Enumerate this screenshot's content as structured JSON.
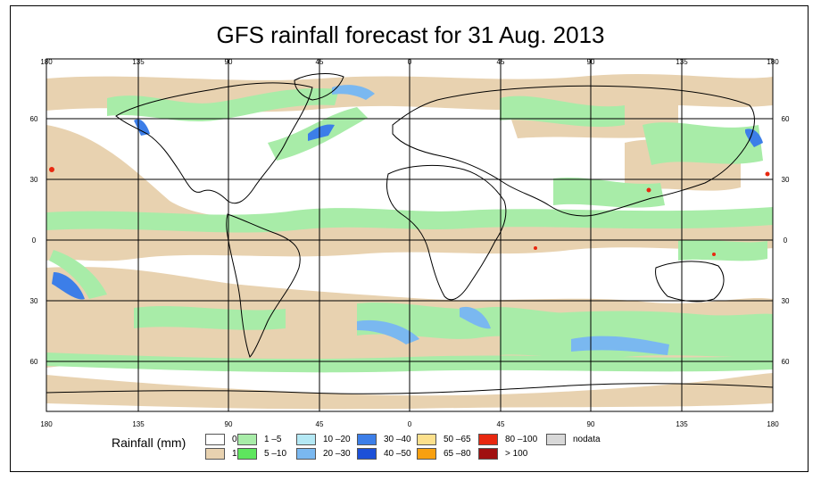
{
  "title": "GFS rainfall forecast for 31 Aug. 2013",
  "axes": {
    "lon_ticks": [
      "180",
      "135",
      "90",
      "45",
      "0",
      "45",
      "90",
      "135",
      "180"
    ],
    "lat_ticks": [
      "60",
      "30",
      "0",
      "30",
      "60"
    ]
  },
  "legend": {
    "label": "Rainfall (mm)",
    "items": [
      {
        "text": "0",
        "color": "#ffffff"
      },
      {
        "text": "1",
        "color": "#e8d2b0"
      },
      {
        "text": "1 –5",
        "color": "#a8eca8"
      },
      {
        "text": "5 –10",
        "color": "#5ee65e"
      },
      {
        "text": "10 –20",
        "color": "#b4e8f4"
      },
      {
        "text": "20 –30",
        "color": "#7ab8f0"
      },
      {
        "text": "30 –40",
        "color": "#3c7ee8"
      },
      {
        "text": "40 –50",
        "color": "#1c50d8"
      },
      {
        "text": "50 –65",
        "color": "#fce08c"
      },
      {
        "text": "65 –80",
        "color": "#f8a010"
      },
      {
        "text": "80 –100",
        "color": "#e82810"
      },
      {
        "text": "> 100",
        "color": "#a01010"
      },
      {
        "text": "nodata",
        "color": "#d8d8d8"
      }
    ]
  },
  "colors": {
    "ocean_background": "#ffffff",
    "light_rain": "#e8d2b0",
    "moderate_rain": "#a8eca8",
    "heavy_rain": "#3c7ee8",
    "extreme_rain": "#e82810",
    "coastline": "#000000",
    "grid": "#000000"
  }
}
